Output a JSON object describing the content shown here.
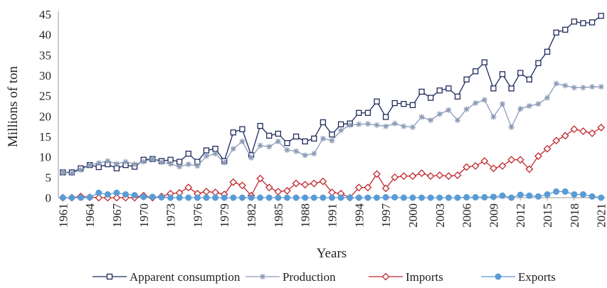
{
  "chart_data": {
    "type": "line",
    "x_label": "Years",
    "y_label": "Millions of ton",
    "x": [
      1961,
      1962,
      1963,
      1964,
      1965,
      1966,
      1967,
      1968,
      1969,
      1970,
      1971,
      1972,
      1973,
      1974,
      1975,
      1976,
      1977,
      1978,
      1979,
      1980,
      1981,
      1982,
      1983,
      1984,
      1985,
      1986,
      1987,
      1988,
      1989,
      1990,
      1991,
      1992,
      1993,
      1994,
      1995,
      1996,
      1997,
      1998,
      1999,
      2000,
      2001,
      2002,
      2003,
      2004,
      2005,
      2006,
      2007,
      2008,
      2009,
      2010,
      2011,
      2012,
      2013,
      2014,
      2015,
      2016,
      2017,
      2018,
      2019,
      2020,
      2021
    ],
    "xlim": [
      1960.5,
      2021.5
    ],
    "xticks": [
      1961,
      1964,
      1967,
      1970,
      1973,
      1976,
      1979,
      1982,
      1985,
      1988,
      1991,
      1994,
      1997,
      2000,
      2003,
      2006,
      2009,
      2012,
      2015,
      2018,
      2021
    ],
    "ylim": [
      0,
      45
    ],
    "yticks": [
      0,
      5,
      10,
      15,
      20,
      25,
      30,
      35,
      40,
      45
    ],
    "grid": false,
    "legend": "bottom",
    "series": [
      {
        "name": "Apparent consumption",
        "color": "#1f2a5c",
        "marker": "square",
        "values": [
          6.2,
          6.2,
          7.2,
          8.0,
          7.5,
          8.2,
          7.2,
          8.0,
          7.6,
          9.3,
          9.5,
          9.0,
          9.3,
          8.8,
          10.8,
          8.8,
          11.6,
          12.0,
          9.0,
          16.0,
          16.8,
          10.4,
          17.6,
          15.2,
          15.7,
          13.4,
          15.0,
          13.8,
          14.5,
          18.5,
          15.5,
          18.0,
          18.2,
          20.8,
          20.8,
          23.6,
          19.8,
          23.2,
          23.0,
          22.7,
          26.0,
          24.5,
          26.3,
          26.8,
          24.8,
          29.0,
          31.0,
          33.2,
          26.8,
          30.3,
          26.8,
          30.6,
          29.0,
          33.0,
          35.8,
          40.5,
          41.2,
          43.2,
          42.8,
          43.0,
          44.6
        ]
      },
      {
        "name": "Production",
        "color": "#8b9bb6",
        "marker": "asterisk",
        "values": [
          6.2,
          6.0,
          6.8,
          8.0,
          8.5,
          9.0,
          8.3,
          8.8,
          8.2,
          8.8,
          9.5,
          8.7,
          8.3,
          7.6,
          8.2,
          7.8,
          10.2,
          10.8,
          8.6,
          12.0,
          13.8,
          9.8,
          12.8,
          12.5,
          13.8,
          11.7,
          11.4,
          10.4,
          10.8,
          14.5,
          14.0,
          16.5,
          17.8,
          18.0,
          18.1,
          17.8,
          17.5,
          18.2,
          17.5,
          17.3,
          19.8,
          19.0,
          20.5,
          21.5,
          19.0,
          21.7,
          23.2,
          24.0,
          19.8,
          23.0,
          17.3,
          21.8,
          22.5,
          23.0,
          24.5,
          28.0,
          27.5,
          27.0,
          27.0,
          27.2,
          27.2
        ]
      },
      {
        "name": "Imports",
        "color": "#c0282d",
        "marker": "diamond",
        "values": [
          0,
          0,
          0.3,
          0.1,
          0,
          0,
          0,
          0,
          0,
          0.5,
          0,
          0.3,
          1.0,
          1.2,
          2.5,
          1.0,
          1.5,
          1.3,
          0.8,
          3.8,
          3.0,
          0.5,
          4.7,
          2.5,
          1.5,
          1.7,
          3.5,
          3.2,
          3.5,
          4.0,
          1.3,
          1.0,
          0,
          2.5,
          2.5,
          5.8,
          2.3,
          5.0,
          5.3,
          5.3,
          6.0,
          5.3,
          5.5,
          5.3,
          5.5,
          7.5,
          7.8,
          9.0,
          7.2,
          7.8,
          9.3,
          9.3,
          7.0,
          10.2,
          12.0,
          14.0,
          15.2,
          16.8,
          16.3,
          15.8,
          17.2
        ]
      },
      {
        "name": "Exports",
        "color": "#5b9bd5",
        "marker": "circle",
        "values": [
          0,
          0,
          0,
          0.1,
          1.2,
          0.8,
          1.2,
          0.8,
          0.6,
          0.2,
          0.2,
          0.1,
          0,
          0,
          0,
          0,
          0,
          0,
          0,
          0,
          0,
          0,
          0,
          0,
          0,
          0,
          0,
          0,
          0,
          0,
          0,
          0,
          0,
          0,
          0,
          0,
          0.1,
          0.1,
          0,
          0,
          0,
          0,
          0,
          0,
          0,
          0.1,
          0.1,
          0.1,
          0.2,
          0.5,
          0,
          0.7,
          0.5,
          0.3,
          0.8,
          1.5,
          1.5,
          0.8,
          0.8,
          0.3,
          0
        ]
      }
    ]
  }
}
